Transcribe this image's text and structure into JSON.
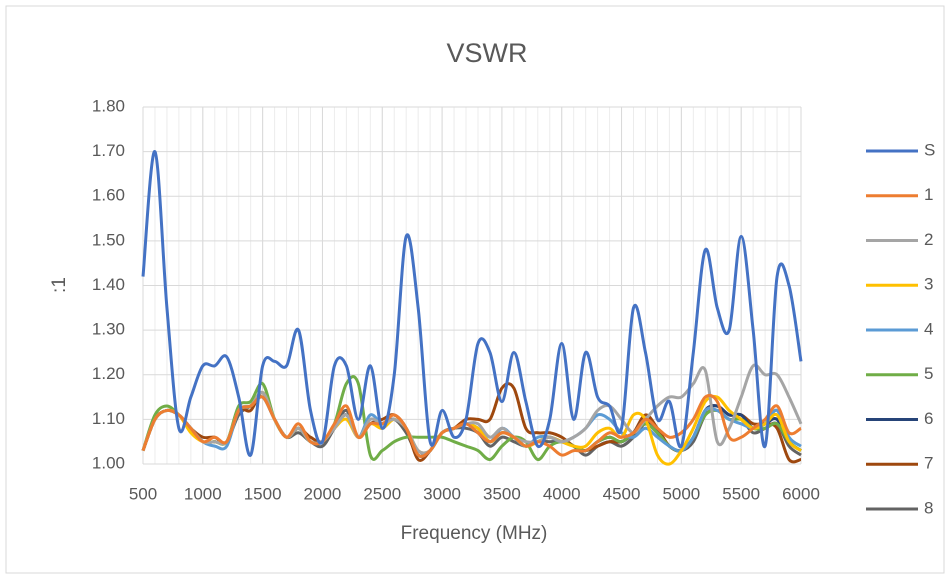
{
  "chart_data": {
    "type": "line",
    "title": "VSWR",
    "x_label": "Frequency (MHz)",
    "y_label": ":1",
    "x": [
      500,
      600,
      700,
      800,
      900,
      1000,
      1100,
      1200,
      1300,
      1400,
      1500,
      1600,
      1700,
      1800,
      1900,
      2000,
      2100,
      2200,
      2300,
      2400,
      2500,
      2600,
      2700,
      2800,
      2900,
      3000,
      3100,
      3200,
      3300,
      3400,
      3500,
      3600,
      3700,
      3800,
      3900,
      4000,
      4100,
      4200,
      4300,
      4400,
      4500,
      4600,
      4700,
      4800,
      4900,
      5000,
      5100,
      5200,
      5300,
      5400,
      5500,
      5600,
      5700,
      5800,
      5900,
      6000
    ],
    "xlim": [
      500,
      6000
    ],
    "xticks": [
      500,
      1000,
      1500,
      2000,
      2500,
      3000,
      3500,
      4000,
      4500,
      5000,
      5500,
      6000
    ],
    "ylim": [
      1.0,
      1.8
    ],
    "yticks": [
      {
        "value": 1.0,
        "label": "1.00"
      },
      {
        "value": 1.1,
        "label": "1.10"
      },
      {
        "value": 1.2,
        "label": "1.20"
      },
      {
        "value": 1.3,
        "label": "1.30"
      },
      {
        "value": 1.4,
        "label": "1.40"
      },
      {
        "value": 1.5,
        "label": "1.50"
      },
      {
        "value": 1.6,
        "label": "1.60"
      },
      {
        "value": 1.7,
        "label": "1.70"
      },
      {
        "value": 1.8,
        "label": "1.80"
      }
    ],
    "grid": true,
    "legend": "right",
    "series": [
      {
        "name": "S",
        "color": "#4472c4",
        "values": [
          1.42,
          1.7,
          1.35,
          1.08,
          1.15,
          1.22,
          1.22,
          1.24,
          1.15,
          1.02,
          1.22,
          1.23,
          1.22,
          1.3,
          1.12,
          1.05,
          1.22,
          1.22,
          1.1,
          1.22,
          1.08,
          1.2,
          1.51,
          1.35,
          1.05,
          1.12,
          1.06,
          1.1,
          1.27,
          1.25,
          1.14,
          1.25,
          1.14,
          1.04,
          1.1,
          1.27,
          1.1,
          1.25,
          1.15,
          1.13,
          1.08,
          1.35,
          1.25,
          1.1,
          1.14,
          1.04,
          1.25,
          1.48,
          1.35,
          1.3,
          1.51,
          1.3,
          1.04,
          1.42,
          1.4,
          1.23
        ]
      },
      {
        "name": "1",
        "color": "#ed7d31",
        "values": [
          1.03,
          1.1,
          1.12,
          1.11,
          1.08,
          1.05,
          1.06,
          1.05,
          1.12,
          1.13,
          1.15,
          1.1,
          1.06,
          1.09,
          1.05,
          1.05,
          1.09,
          1.13,
          1.06,
          1.09,
          1.09,
          1.11,
          1.08,
          1.02,
          1.03,
          1.07,
          1.08,
          1.09,
          1.07,
          1.05,
          1.07,
          1.06,
          1.04,
          1.05,
          1.04,
          1.02,
          1.03,
          1.03,
          1.05,
          1.07,
          1.06,
          1.07,
          1.1,
          1.08,
          1.06,
          1.07,
          1.1,
          1.15,
          1.14,
          1.06,
          1.06,
          1.08,
          1.1,
          1.13,
          1.07,
          1.08
        ]
      },
      {
        "name": "2",
        "color": "#a5a5a5",
        "values": [
          1.03,
          1.1,
          1.12,
          1.11,
          1.08,
          1.05,
          1.05,
          1.05,
          1.12,
          1.13,
          1.16,
          1.1,
          1.06,
          1.08,
          1.05,
          1.05,
          1.08,
          1.11,
          1.06,
          1.1,
          1.09,
          1.1,
          1.08,
          1.03,
          1.03,
          1.07,
          1.08,
          1.09,
          1.09,
          1.06,
          1.08,
          1.06,
          1.05,
          1.05,
          1.06,
          1.05,
          1.06,
          1.08,
          1.12,
          1.13,
          1.1,
          1.07,
          1.1,
          1.13,
          1.15,
          1.15,
          1.18,
          1.21,
          1.05,
          1.08,
          1.15,
          1.22,
          1.2,
          1.2,
          1.15,
          1.09
        ]
      },
      {
        "name": "3",
        "color": "#ffc000",
        "values": [
          1.03,
          1.1,
          1.12,
          1.11,
          1.07,
          1.05,
          1.05,
          1.05,
          1.12,
          1.13,
          1.16,
          1.1,
          1.06,
          1.08,
          1.05,
          1.05,
          1.08,
          1.1,
          1.06,
          1.09,
          1.08,
          1.1,
          1.08,
          1.03,
          1.03,
          1.07,
          1.08,
          1.09,
          1.08,
          1.05,
          1.07,
          1.06,
          1.04,
          1.05,
          1.06,
          1.05,
          1.04,
          1.04,
          1.07,
          1.08,
          1.06,
          1.11,
          1.1,
          1.02,
          1.0,
          1.03,
          1.08,
          1.14,
          1.15,
          1.12,
          1.1,
          1.08,
          1.09,
          1.11,
          1.05,
          1.03
        ]
      },
      {
        "name": "4",
        "color": "#5b9bd5",
        "values": [
          1.03,
          1.1,
          1.12,
          1.11,
          1.08,
          1.05,
          1.04,
          1.04,
          1.12,
          1.13,
          1.15,
          1.1,
          1.06,
          1.08,
          1.05,
          1.05,
          1.08,
          1.11,
          1.06,
          1.11,
          1.09,
          1.1,
          1.08,
          1.02,
          1.03,
          1.07,
          1.08,
          1.09,
          1.08,
          1.05,
          1.08,
          1.06,
          1.04,
          1.06,
          1.06,
          1.05,
          1.06,
          1.08,
          1.11,
          1.1,
          1.07,
          1.06,
          1.08,
          1.06,
          1.04,
          1.03,
          1.06,
          1.12,
          1.12,
          1.1,
          1.09,
          1.08,
          1.09,
          1.12,
          1.06,
          1.04
        ]
      },
      {
        "name": "5",
        "color": "#70ad47",
        "values": [
          1.03,
          1.11,
          1.13,
          1.11,
          1.08,
          1.05,
          1.05,
          1.05,
          1.13,
          1.14,
          1.18,
          1.1,
          1.06,
          1.08,
          1.05,
          1.05,
          1.09,
          1.18,
          1.18,
          1.02,
          1.03,
          1.05,
          1.06,
          1.06,
          1.06,
          1.06,
          1.05,
          1.04,
          1.03,
          1.01,
          1.04,
          1.06,
          1.05,
          1.01,
          1.04,
          1.05,
          1.04,
          1.03,
          1.05,
          1.06,
          1.05,
          1.07,
          1.09,
          1.07,
          1.04,
          1.03,
          1.06,
          1.11,
          1.12,
          1.1,
          1.1,
          1.08,
          1.08,
          1.09,
          1.05,
          1.03
        ]
      },
      {
        "name": "6",
        "color": "#264478",
        "values": [
          1.03,
          1.1,
          1.12,
          1.11,
          1.08,
          1.05,
          1.05,
          1.05,
          1.12,
          1.13,
          1.16,
          1.1,
          1.06,
          1.08,
          1.05,
          1.05,
          1.08,
          1.11,
          1.06,
          1.09,
          1.09,
          1.1,
          1.08,
          1.02,
          1.03,
          1.07,
          1.08,
          1.09,
          1.08,
          1.05,
          1.07,
          1.06,
          1.04,
          1.05,
          1.06,
          1.05,
          1.04,
          1.03,
          1.05,
          1.06,
          1.05,
          1.07,
          1.1,
          1.07,
          1.04,
          1.03,
          1.06,
          1.12,
          1.13,
          1.11,
          1.11,
          1.08,
          1.09,
          1.1,
          1.05,
          1.03
        ]
      },
      {
        "name": "7",
        "color": "#9e480e",
        "values": [
          1.03,
          1.1,
          1.12,
          1.11,
          1.08,
          1.06,
          1.06,
          1.05,
          1.12,
          1.12,
          1.16,
          1.1,
          1.06,
          1.08,
          1.06,
          1.05,
          1.08,
          1.11,
          1.06,
          1.09,
          1.1,
          1.11,
          1.08,
          1.01,
          1.03,
          1.07,
          1.08,
          1.1,
          1.1,
          1.1,
          1.17,
          1.17,
          1.08,
          1.07,
          1.07,
          1.06,
          1.04,
          1.03,
          1.04,
          1.05,
          1.05,
          1.07,
          1.11,
          1.08,
          1.04,
          1.03,
          1.06,
          1.12,
          1.13,
          1.11,
          1.11,
          1.09,
          1.09,
          1.08,
          1.01,
          1.01
        ]
      },
      {
        "name": "8",
        "color": "#636363",
        "values": [
          1.03,
          1.1,
          1.12,
          1.11,
          1.08,
          1.05,
          1.05,
          1.05,
          1.11,
          1.13,
          1.15,
          1.1,
          1.06,
          1.07,
          1.05,
          1.04,
          1.08,
          1.12,
          1.06,
          1.09,
          1.09,
          1.1,
          1.07,
          1.02,
          1.03,
          1.07,
          1.08,
          1.08,
          1.07,
          1.04,
          1.06,
          1.05,
          1.04,
          1.05,
          1.05,
          1.05,
          1.04,
          1.02,
          1.04,
          1.05,
          1.04,
          1.06,
          1.09,
          1.07,
          1.04,
          1.03,
          1.05,
          1.11,
          1.12,
          1.1,
          1.1,
          1.07,
          1.08,
          1.09,
          1.04,
          1.02
        ]
      }
    ]
  }
}
